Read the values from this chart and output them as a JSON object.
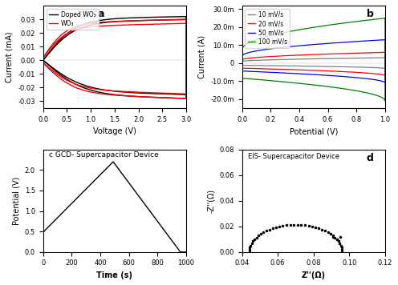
{
  "panel_a": {
    "title": "a",
    "xlabel": "Voltage (V)",
    "ylabel": "Current (mA)",
    "xlim": [
      0.0,
      3.0
    ],
    "ylim": [
      -0.035,
      0.04
    ],
    "xticks": [
      0.0,
      0.5,
      1.0,
      1.5,
      2.0,
      2.5,
      3.0
    ],
    "yticks": [
      -0.03,
      -0.02,
      -0.01,
      0.0,
      0.01,
      0.02,
      0.03
    ],
    "legend": [
      "Doped WO₃",
      "WO₃"
    ],
    "colors": [
      "black",
      "red"
    ]
  },
  "panel_b": {
    "title": "b",
    "xlabel": "Potential (V)",
    "ylabel": "Current (A)",
    "xlim": [
      0.0,
      1.0
    ],
    "ylim": [
      -0.025,
      0.032
    ],
    "xticks": [
      0.0,
      0.2,
      0.4,
      0.6,
      0.8,
      1.0
    ],
    "yticks": [
      -0.02,
      -0.01,
      0.0,
      0.01,
      0.02,
      0.03
    ],
    "legend": [
      "10 mV/s",
      "20 mV/s",
      "50 mV/s",
      "100 mV/s"
    ],
    "colors": [
      "#808080",
      "red",
      "blue",
      "green"
    ]
  },
  "panel_c": {
    "title": "c GCD- Supercapacitor Device",
    "xlabel": "Time (s)",
    "ylabel": "Potential (V)",
    "xlim": [
      0,
      1000
    ],
    "ylim": [
      0.0,
      2.5
    ],
    "xticks": [
      0,
      200,
      400,
      600,
      800,
      1000
    ],
    "yticks": [
      0.0,
      0.5,
      1.0,
      1.5,
      2.0
    ]
  },
  "panel_d": {
    "title": "d",
    "subtitle": "EIS- Supercapacitor Device",
    "xlabel": "Z''(Ω)",
    "ylabel": "-Z''(Ω)",
    "xlim": [
      0.04,
      0.12
    ],
    "ylim": [
      0.0,
      0.08
    ],
    "xticks": [
      0.04,
      0.06,
      0.08,
      0.1,
      0.12
    ],
    "yticks": [
      0.0,
      0.02,
      0.04,
      0.06,
      0.08
    ]
  }
}
